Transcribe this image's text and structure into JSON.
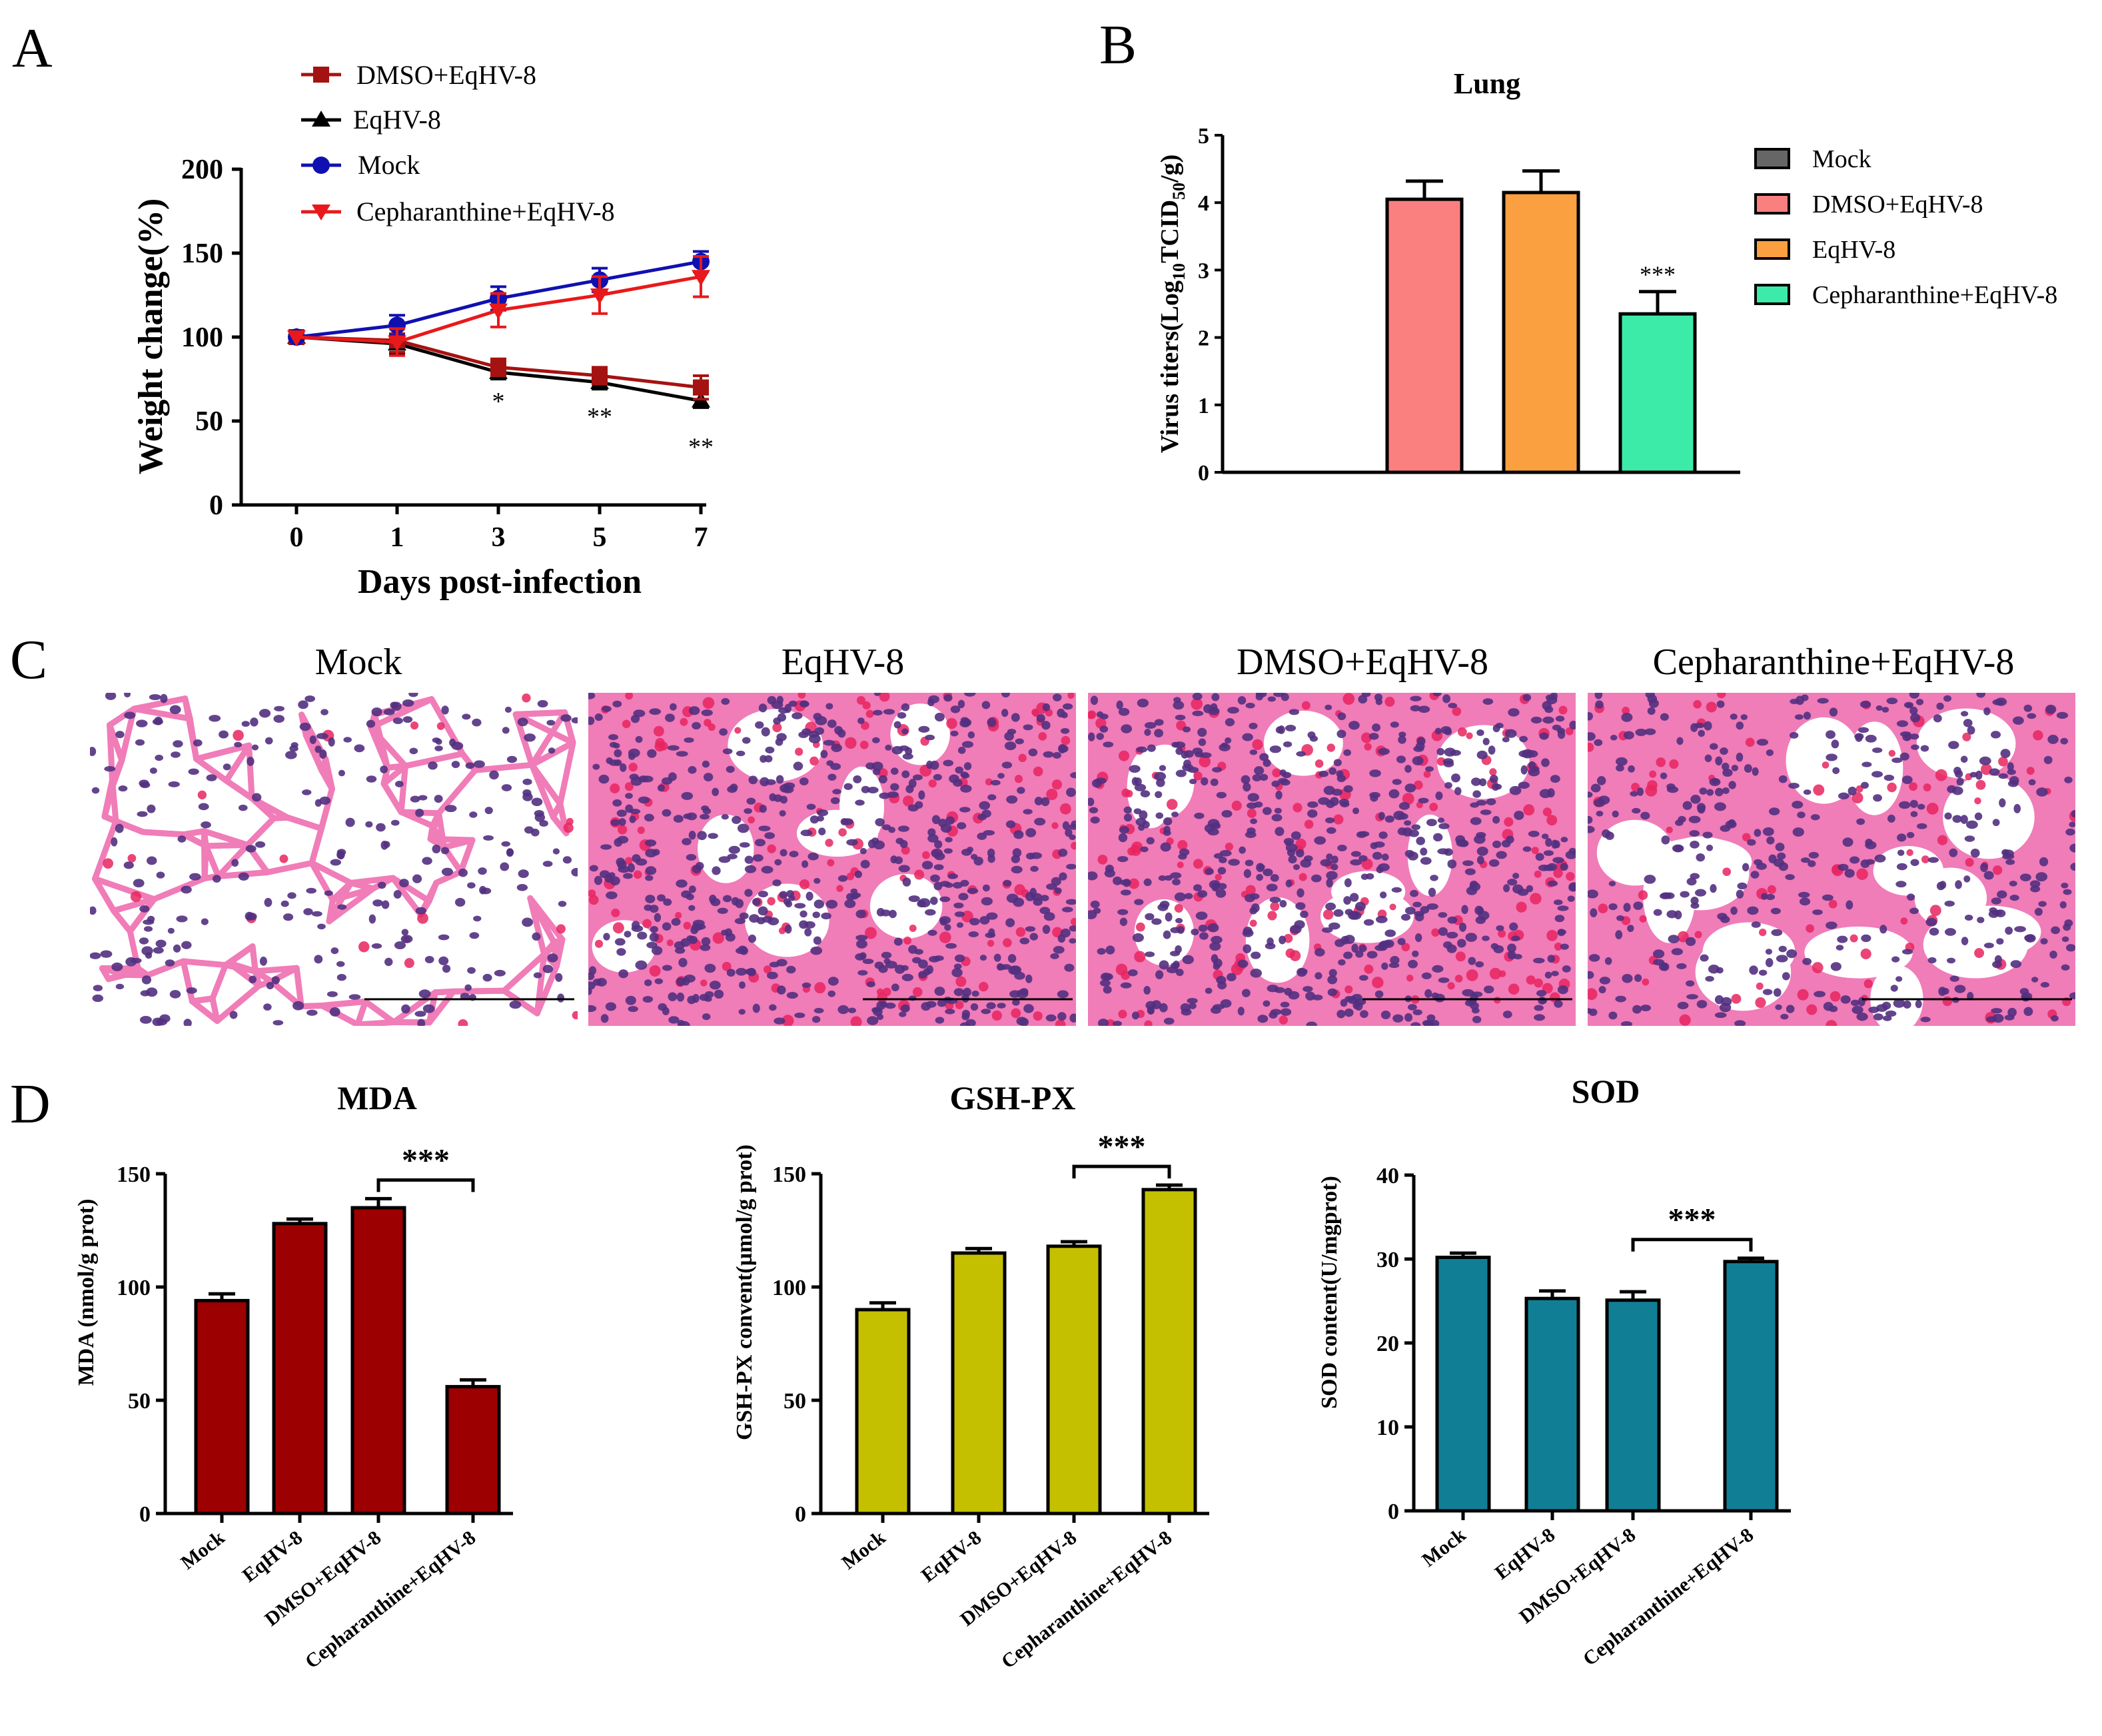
{
  "panel_labels": [
    "A",
    "B",
    "C",
    "D"
  ],
  "chart_data": [
    {
      "id": "A",
      "type": "line",
      "title": "",
      "xlabel": "Days post-infection",
      "ylabel": "Weight change(%)",
      "x": [
        0,
        1,
        3,
        5,
        7
      ],
      "xticks": [
        "0",
        "1",
        "3",
        "5",
        "7"
      ],
      "ylim": [
        0,
        200
      ],
      "yticks": [
        "0",
        "50",
        "100",
        "150",
        "200"
      ],
      "legend_position": "top-left",
      "series": [
        {
          "name": "DMSO+EqHV-8",
          "color": "#a51212",
          "marker": "square",
          "values": [
            100,
            98,
            82,
            77,
            70
          ],
          "errors": [
            0,
            7,
            5,
            5,
            7
          ]
        },
        {
          "name": "EqHV-8",
          "color": "#000000",
          "marker": "triangle-up",
          "values": [
            100,
            96,
            79,
            73,
            62
          ],
          "errors": [
            0,
            6,
            4,
            4,
            4
          ]
        },
        {
          "name": "Mock",
          "color": "#1010b0",
          "marker": "circle",
          "values": [
            100,
            107,
            123,
            134,
            145
          ],
          "errors": [
            0,
            6,
            7,
            7,
            6
          ]
        },
        {
          "name": "Cepharanthine+EqHV-8",
          "color": "#e8191b",
          "marker": "triangle-down",
          "values": [
            100,
            97,
            116,
            125,
            136
          ],
          "errors": [
            0,
            8,
            10,
            11,
            12
          ]
        }
      ],
      "annotations": [
        {
          "x": 3,
          "y": 63,
          "text": "*"
        },
        {
          "x": 5,
          "y": 54,
          "text": "**"
        },
        {
          "x": 7,
          "y": 36,
          "text": "**"
        }
      ]
    },
    {
      "id": "B",
      "type": "bar",
      "title": "Lung",
      "xlabel": "",
      "ylabel": "Virus titers(Log10TCID50/g)",
      "ylim": [
        0,
        5
      ],
      "yticks": [
        "0",
        "1",
        "2",
        "3",
        "4",
        "5"
      ],
      "legend_position": "right",
      "series": [
        {
          "name": "Mock",
          "color": "#666666",
          "value": 0,
          "error": 0
        },
        {
          "name": "DMSO+EqHV-8",
          "color": "#fa8080",
          "value": 4.05,
          "error": 0.27
        },
        {
          "name": "EqHV-8",
          "color": "#fba040",
          "value": 4.15,
          "error": 0.32
        },
        {
          "name": "Cepharanthine+EqHV-8",
          "color": "#3deba8",
          "value": 2.35,
          "error": 0.33
        }
      ],
      "annotations": [
        {
          "bar": 3,
          "text": "***"
        }
      ]
    },
    {
      "id": "D1",
      "type": "bar",
      "title": "MDA",
      "ylabel": "MDA (nmol/g prot)",
      "color": "#9c0000",
      "categories": [
        "Mock",
        "EqHV-8",
        "DMSO+EqHV-8",
        "Cepharanthine+EqHV-8"
      ],
      "values": [
        94,
        128,
        135,
        56
      ],
      "errors": [
        3,
        2,
        4,
        3
      ],
      "ylim": [
        0,
        150
      ],
      "yticks": [
        "0",
        "50",
        "100",
        "150"
      ],
      "significance": {
        "from": 2,
        "to": 3,
        "text": "***"
      }
    },
    {
      "id": "D2",
      "type": "bar",
      "title": "GSH-PX",
      "ylabel": "GSH-PX convent(µmol/g prot)",
      "color": "#c4c000",
      "categories": [
        "Mock",
        "EqHV-8",
        "DMSO+EqHV-8",
        "Cepharanthine+EqHV-8"
      ],
      "values": [
        90,
        115,
        118,
        143
      ],
      "errors": [
        3,
        2,
        2,
        2
      ],
      "ylim": [
        0,
        150
      ],
      "yticks": [
        "0",
        "50",
        "100",
        "150"
      ],
      "significance": {
        "from": 2,
        "to": 3,
        "text": "***"
      }
    },
    {
      "id": "D3",
      "type": "bar",
      "title": "SOD",
      "ylabel": "SOD content(U/mgprot)",
      "color": "#107f96",
      "categories": [
        "Mock",
        "EqHV-8",
        "DMSO+EqHV-8",
        "Cepharanthine+EqHV-8"
      ],
      "values": [
        30.2,
        25.3,
        25.1,
        29.7
      ],
      "errors": [
        0.5,
        0.9,
        1.0,
        0.4
      ],
      "ylim": [
        0,
        40
      ],
      "yticks": [
        "0",
        "10",
        "20",
        "30",
        "40"
      ],
      "significance": {
        "from": 2,
        "to": 3,
        "text": "***"
      }
    }
  ],
  "histology": {
    "panels": [
      {
        "label": "Mock",
        "style": "sparse"
      },
      {
        "label": "EqHV-8",
        "style": "dense"
      },
      {
        "label": "DMSO+EqHV-8",
        "style": "dense"
      },
      {
        "label": "Cepharanthine+EqHV-8",
        "style": "medium"
      }
    ],
    "colors": {
      "tissue": "#f07cb8",
      "nucleus": "#52307f",
      "blood": "#e8255f",
      "space": "#ffffff"
    }
  }
}
